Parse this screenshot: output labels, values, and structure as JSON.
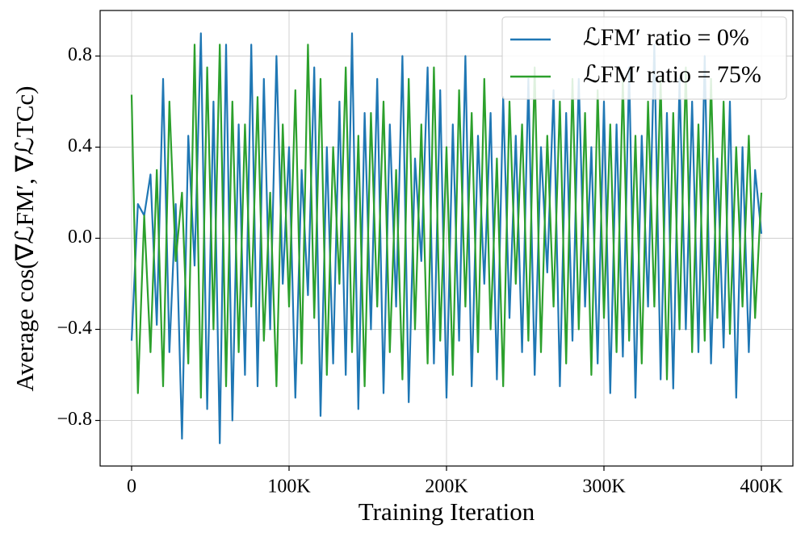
{
  "chart_data": {
    "type": "line",
    "xlabel": "Training Iteration",
    "ylabel": "Average cos(∇ℒFM′, ∇ℒTCc)",
    "x": [
      0,
      4000,
      8000,
      12000,
      16000,
      20000,
      24000,
      28000,
      32000,
      36000,
      40000,
      44000,
      48000,
      52000,
      56000,
      60000,
      64000,
      68000,
      72000,
      76000,
      80000,
      84000,
      88000,
      92000,
      96000,
      100000,
      104000,
      108000,
      112000,
      116000,
      120000,
      124000,
      128000,
      132000,
      136000,
      140000,
      144000,
      148000,
      152000,
      156000,
      160000,
      164000,
      168000,
      172000,
      176000,
      180000,
      184000,
      188000,
      192000,
      196000,
      200000,
      204000,
      208000,
      212000,
      216000,
      220000,
      224000,
      228000,
      232000,
      236000,
      240000,
      244000,
      248000,
      252000,
      256000,
      260000,
      264000,
      268000,
      272000,
      276000,
      280000,
      284000,
      288000,
      292000,
      296000,
      300000,
      304000,
      308000,
      312000,
      316000,
      320000,
      324000,
      328000,
      332000,
      336000,
      340000,
      344000,
      348000,
      352000,
      356000,
      360000,
      364000,
      368000,
      372000,
      376000,
      380000,
      384000,
      388000,
      392000,
      396000,
      400000
    ],
    "series": [
      {
        "name": "ℒFM′ ratio = 0%",
        "color": "#1f77b4",
        "values": [
          -0.45,
          0.15,
          0.1,
          0.28,
          -0.38,
          0.7,
          -0.5,
          0.15,
          -0.88,
          0.45,
          -0.12,
          0.9,
          -0.75,
          0.6,
          -0.9,
          0.85,
          -0.8,
          0.5,
          -0.6,
          0.85,
          -0.65,
          0.7,
          -0.4,
          0.8,
          -0.2,
          0.4,
          -0.7,
          0.3,
          -0.25,
          0.75,
          -0.78,
          0.4,
          -0.55,
          0.6,
          -0.6,
          0.9,
          -0.75,
          0.55,
          -0.4,
          0.7,
          -0.68,
          0.5,
          -0.3,
          0.8,
          -0.72,
          0.35,
          -0.1,
          0.75,
          -0.55,
          0.65,
          -0.7,
          0.5,
          -0.45,
          0.8,
          -0.65,
          0.45,
          -0.2,
          0.55,
          -0.62,
          0.62,
          -0.35,
          0.45,
          -0.5,
          0.7,
          -0.6,
          0.4,
          -0.15,
          0.65,
          -0.65,
          0.55,
          -0.45,
          0.7,
          -0.3,
          0.4,
          -0.55,
          0.6,
          -0.68,
          0.5,
          -0.52,
          0.75,
          -0.7,
          0.45,
          -0.3,
          0.85,
          -0.62,
          0.55,
          -0.66,
          0.7,
          -0.4,
          0.6,
          -0.5,
          0.8,
          -0.55,
          0.35,
          -0.48,
          0.6,
          -0.7,
          0.4,
          -0.5,
          0.3,
          0.02
        ]
      },
      {
        "name": "ℒFM′ ratio = 75%",
        "color": "#2ca02c",
        "values": [
          0.63,
          -0.68,
          0.1,
          -0.5,
          0.3,
          -0.65,
          0.6,
          -0.1,
          0.2,
          -0.55,
          0.85,
          -0.7,
          0.75,
          -0.4,
          0.85,
          -0.65,
          0.6,
          -0.5,
          0.5,
          -0.3,
          0.62,
          -0.45,
          0.2,
          -0.65,
          0.5,
          -0.3,
          0.65,
          -0.55,
          0.85,
          -0.35,
          0.7,
          -0.6,
          0.4,
          -0.2,
          0.75,
          -0.5,
          0.45,
          -0.65,
          0.55,
          -0.3,
          0.6,
          -0.5,
          0.3,
          -0.62,
          0.7,
          -0.4,
          0.5,
          -0.55,
          0.75,
          -0.45,
          0.4,
          -0.6,
          0.65,
          -0.3,
          0.55,
          -0.5,
          0.7,
          -0.4,
          0.35,
          -0.65,
          0.6,
          -0.2,
          0.5,
          -0.45,
          0.75,
          -0.5,
          0.45,
          -0.3,
          0.6,
          -0.55,
          0.7,
          -0.4,
          0.55,
          -0.6,
          0.65,
          -0.35,
          0.5,
          -0.5,
          0.7,
          -0.45,
          0.45,
          -0.55,
          0.6,
          -0.3,
          0.7,
          -0.62,
          0.55,
          -0.4,
          0.75,
          -0.5,
          0.5,
          -0.45,
          0.7,
          -0.35,
          0.6,
          -0.42,
          0.4,
          -0.3,
          0.45,
          -0.35,
          0.2
        ]
      }
    ],
    "xlim": [
      -20000,
      420000
    ],
    "xticks": [
      0,
      {
        "value": 100000,
        "label": "100K"
      },
      {
        "value": 200000,
        "label": "200K"
      },
      {
        "value": 300000,
        "label": "300K"
      },
      {
        "value": 400000,
        "label": "400K"
      }
    ],
    "ylim": [
      -1,
      1
    ],
    "yticks": [
      {
        "value": -0.8,
        "label": "−0.8"
      },
      {
        "value": -0.4,
        "label": "−0.4"
      },
      {
        "value": 0,
        "label": "0.0"
      },
      0.4,
      0.8
    ],
    "grid": true,
    "legend": "upper right"
  }
}
